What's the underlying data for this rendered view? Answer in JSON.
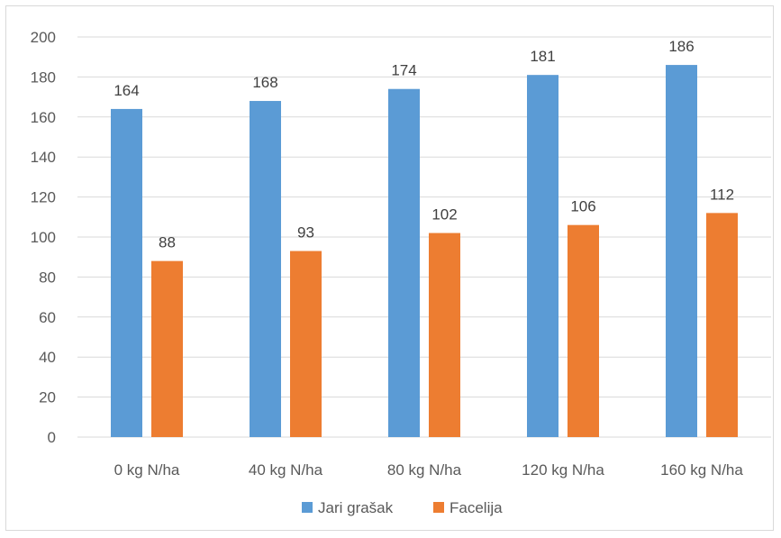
{
  "chart_data": {
    "type": "bar",
    "title": "",
    "xlabel": "",
    "ylabel": "",
    "categories": [
      "0 kg N/ha",
      "40 kg N/ha",
      "80 kg N/ha",
      "120 kg N/ha",
      "160 kg N/ha"
    ],
    "series": [
      {
        "name": "Jari grašak",
        "values": [
          164,
          168,
          174,
          181,
          186
        ],
        "color": "#5b9bd5"
      },
      {
        "name": "Facelija",
        "values": [
          88,
          93,
          102,
          106,
          112
        ],
        "color": "#ed7d31"
      }
    ],
    "ylim": [
      0,
      200
    ],
    "yticks": [
      0,
      20,
      40,
      60,
      80,
      100,
      120,
      140,
      160,
      180,
      200
    ],
    "grid": true,
    "data_labels": true,
    "legend_position": "bottom"
  }
}
